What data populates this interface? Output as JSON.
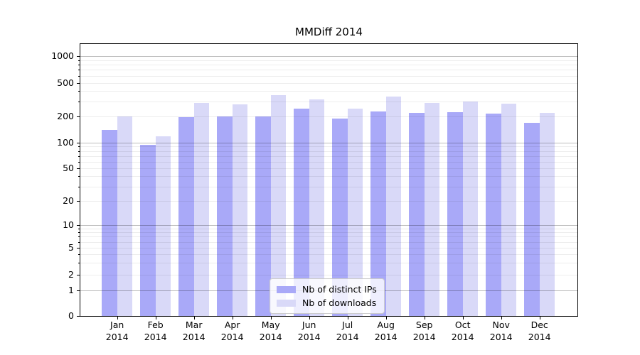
{
  "title": "MMDiff 2014",
  "chart_data": {
    "type": "bar",
    "title": "MMDiff 2014",
    "xlabel": "",
    "ylabel": "",
    "scale": "symlog",
    "grid": "on",
    "ylim": [
      0,
      1000
    ],
    "y_tick_values": [
      0,
      1,
      2,
      5,
      10,
      20,
      50,
      100,
      200,
      500,
      1000
    ],
    "y_tick_labels": [
      "0",
      "1",
      "2",
      "5",
      "10",
      "20",
      "50",
      "100",
      "200",
      "500",
      "1000"
    ],
    "months": [
      "Jan",
      "Feb",
      "Mar",
      "Apr",
      "May",
      "Jun",
      "Jul",
      "Aug",
      "Sep",
      "Oct",
      "Nov",
      "Dec"
    ],
    "year_label": "2014",
    "legend_position": "lower-center-inside",
    "series": [
      {
        "name": "Nb of distinct IPs",
        "color": "#a9a9f8",
        "values": [
          140,
          95,
          195,
          200,
          200,
          245,
          190,
          230,
          220,
          225,
          215,
          170
        ]
      },
      {
        "name": "Nb of downloads",
        "color": "#d9d9f8",
        "values": [
          200,
          118,
          290,
          275,
          360,
          320,
          245,
          340,
          290,
          300,
          285,
          220
        ]
      }
    ]
  }
}
